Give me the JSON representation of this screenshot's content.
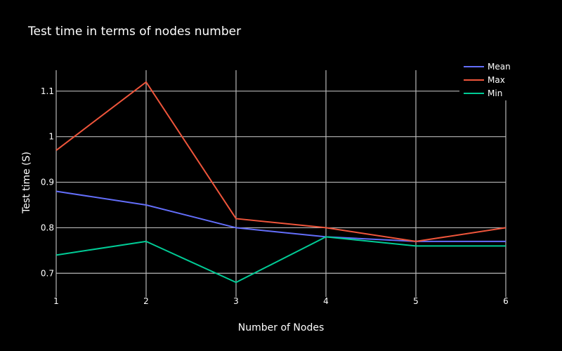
{
  "chart_data": {
    "type": "line",
    "title": "Test time in terms of nodes number",
    "xlabel": "Number of Nodes",
    "ylabel": "Test time (S)",
    "x": [
      1,
      2,
      3,
      4,
      5,
      6
    ],
    "xlim": [
      1,
      6
    ],
    "ylim": [
      0.648,
      1.146
    ],
    "yticks": [
      0.7,
      0.8,
      0.9,
      1,
      1.1
    ],
    "ytick_labels": [
      "0.7",
      "0.8",
      "0.9",
      "1",
      "1.1"
    ],
    "xticks": [
      1,
      2,
      3,
      4,
      5,
      6
    ],
    "xtick_labels": [
      "1",
      "2",
      "3",
      "4",
      "5",
      "6"
    ],
    "grid": true,
    "legend_position": "top-right",
    "series": [
      {
        "name": "Mean",
        "color": "#636efa",
        "values": [
          0.88,
          0.85,
          0.8,
          0.78,
          0.77,
          0.77
        ]
      },
      {
        "name": "Max",
        "color": "#ef553b",
        "values": [
          0.97,
          1.12,
          0.82,
          0.8,
          0.77,
          0.8
        ]
      },
      {
        "name": "Min",
        "color": "#00cc96",
        "values": [
          0.74,
          0.77,
          0.68,
          0.78,
          0.76,
          0.76
        ]
      }
    ],
    "colors": {
      "background": "#000000",
      "grid": "#b8b8b8",
      "text": "#ffffff"
    }
  }
}
